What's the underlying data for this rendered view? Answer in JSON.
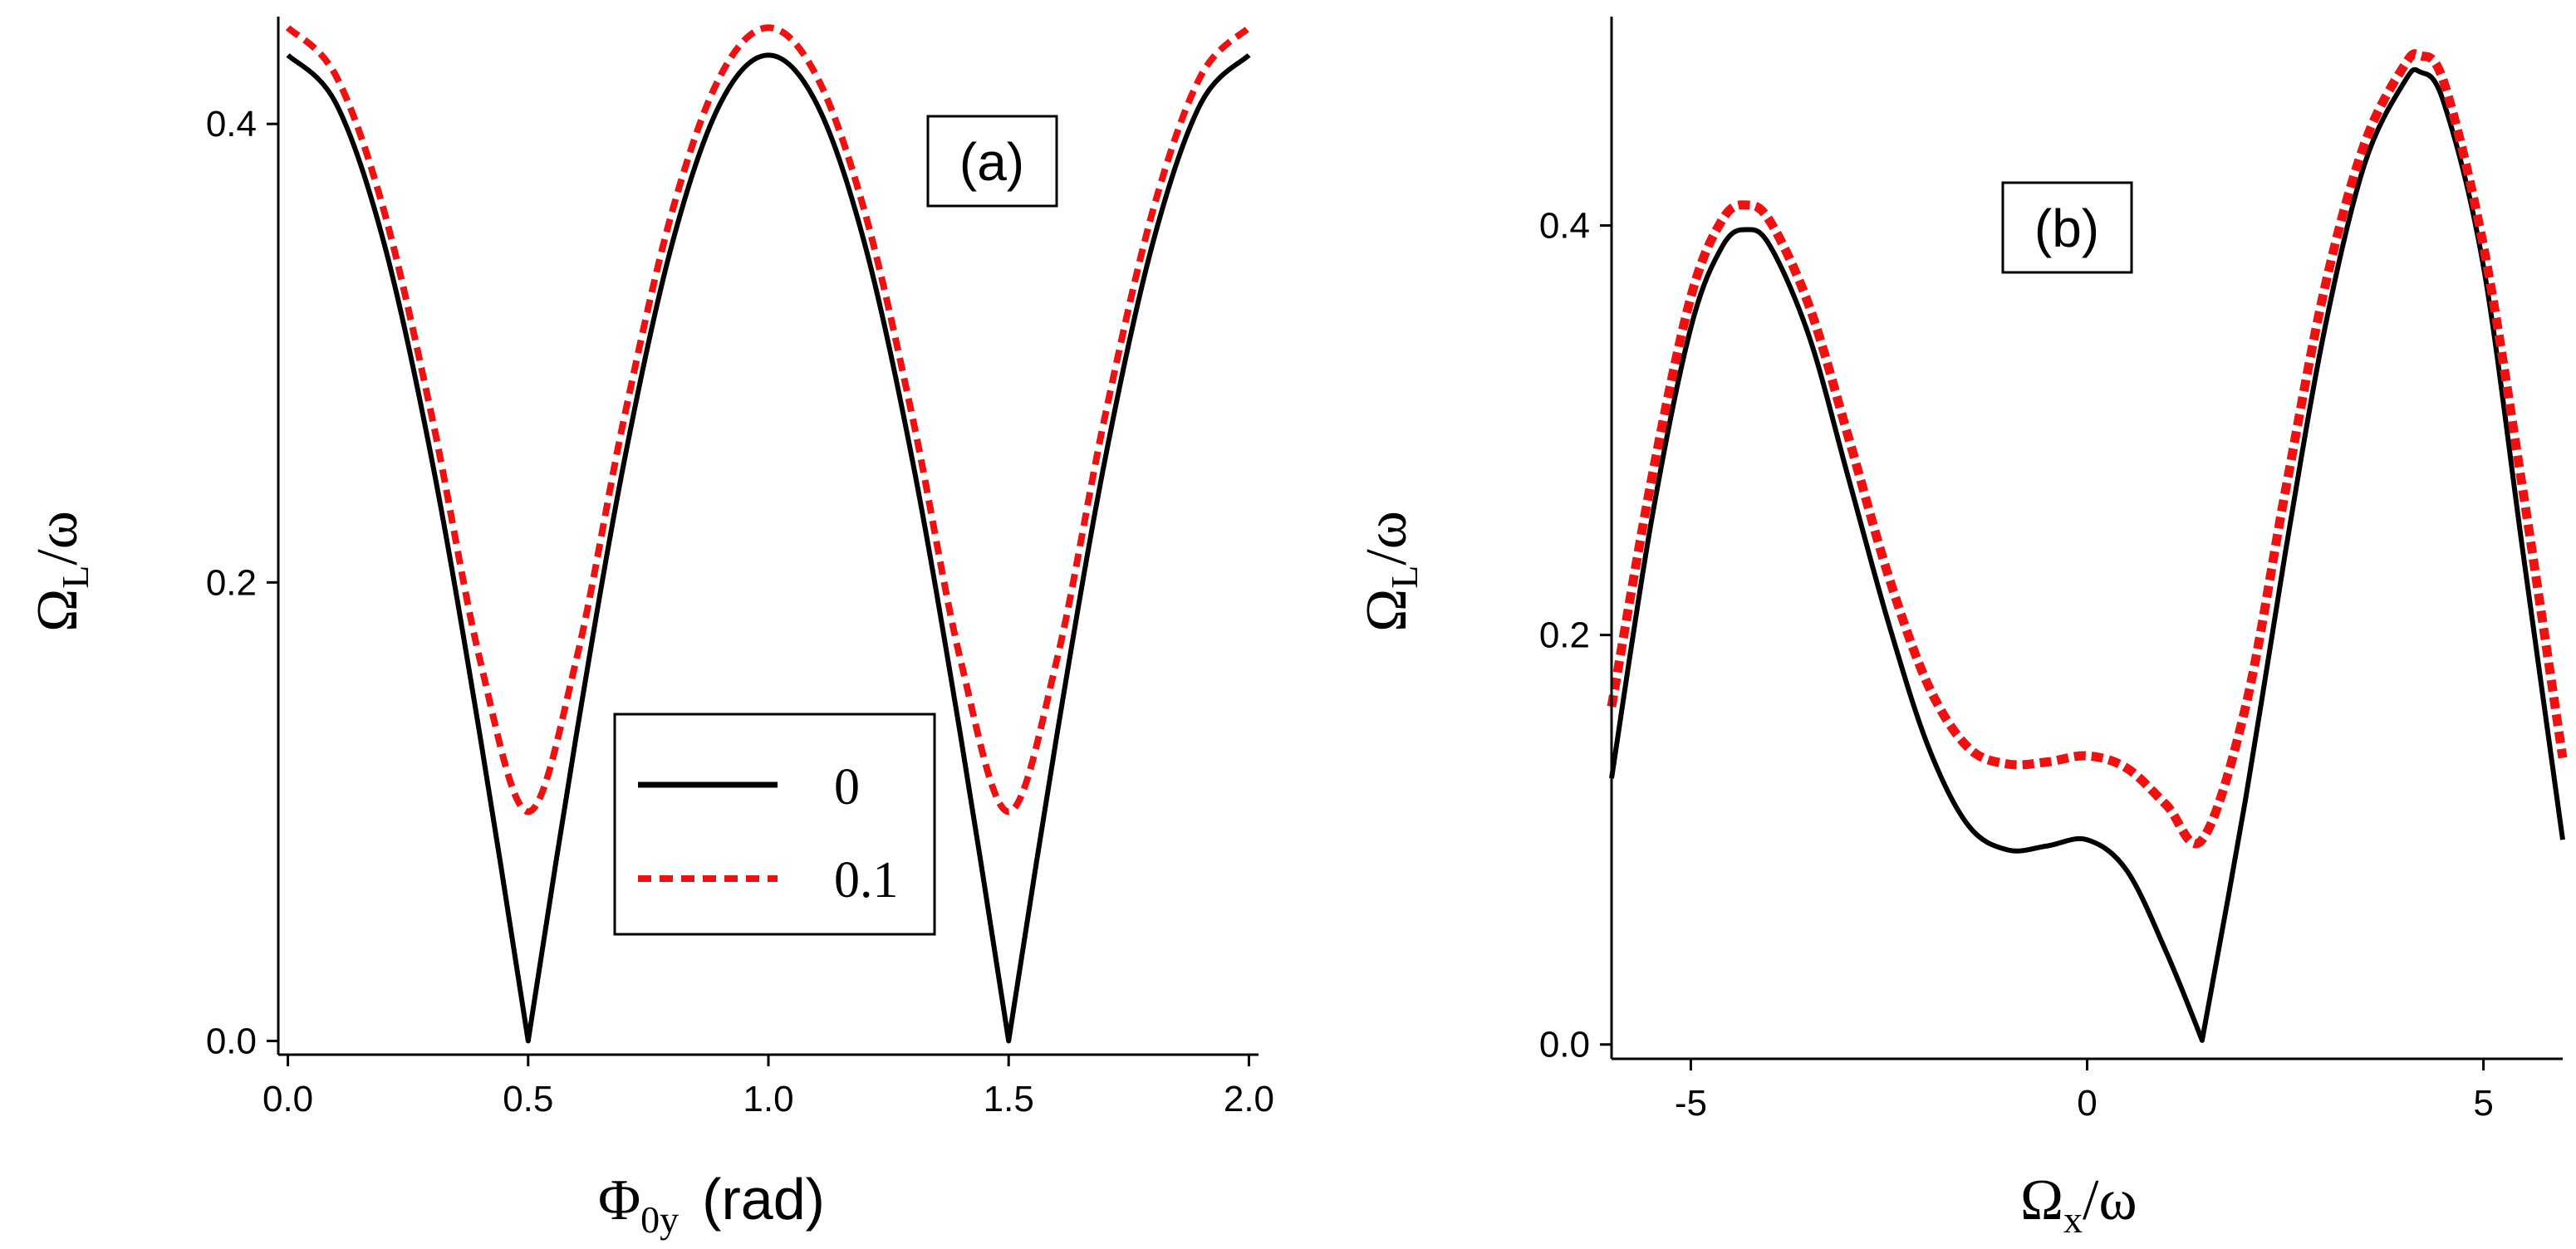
{
  "colors": {
    "solid": "#000000",
    "dashed": "#ee1111",
    "axis": "#000000"
  },
  "chart_data": [
    {
      "type": "line",
      "panel_label": "(a)",
      "xlabel": {
        "symbol": "Φ",
        "sub": "0y",
        "unit": "(rad)"
      },
      "ylabel": {
        "symbol": "Ω",
        "sub": "L",
        "rest": "/ω"
      },
      "xlim": [
        -0.02,
        2.02
      ],
      "ylim": [
        -0.006,
        0.445
      ],
      "xticks": [
        0.0,
        0.5,
        1.0,
        1.5,
        2.0
      ],
      "xtick_labels": [
        "0.0",
        "0.5",
        "1.0",
        "1.5",
        "2.0"
      ],
      "yticks": [
        0.0,
        0.2,
        0.4
      ],
      "ytick_labels": [
        "0.0",
        "0.2",
        "0.4"
      ],
      "legend": {
        "placement": "center-right",
        "entries": [
          "0",
          "0.1"
        ]
      },
      "series": [
        {
          "name": "0",
          "style": "solid",
          "x": [
            0.0,
            0.1,
            0.2,
            0.3,
            0.4,
            0.5,
            0.6,
            0.7,
            0.8,
            0.9,
            1.0,
            1.1,
            1.2,
            1.3,
            1.4,
            1.5,
            1.6,
            1.7,
            1.8,
            1.9,
            2.0
          ],
          "y": [
            0.43,
            0.409,
            0.348,
            0.253,
            0.133,
            0.0,
            0.133,
            0.253,
            0.348,
            0.409,
            0.43,
            0.409,
            0.348,
            0.253,
            0.133,
            0.0,
            0.133,
            0.253,
            0.348,
            0.409,
            0.43
          ]
        },
        {
          "name": "0.1",
          "style": "dashed",
          "x": [
            0.0,
            0.1,
            0.2,
            0.3,
            0.4,
            0.5,
            0.6,
            0.7,
            0.8,
            0.9,
            1.0,
            1.1,
            1.2,
            1.3,
            1.4,
            1.5,
            1.6,
            1.7,
            1.8,
            1.9,
            2.0
          ],
          "y": [
            0.442,
            0.421,
            0.362,
            0.272,
            0.166,
            0.1,
            0.166,
            0.272,
            0.362,
            0.421,
            0.442,
            0.421,
            0.362,
            0.272,
            0.166,
            0.1,
            0.166,
            0.272,
            0.362,
            0.421,
            0.442
          ]
        }
      ]
    },
    {
      "type": "line",
      "panel_label": "(b)",
      "xlabel": {
        "symbol": "Ω",
        "sub": "x",
        "rest": "/ω"
      },
      "ylabel": {
        "symbol": "Ω",
        "sub": "L",
        "rest": "/ω"
      },
      "xlim": [
        -6.0,
        6.0
      ],
      "ylim": [
        -0.007,
        0.5
      ],
      "xticks": [
        -5,
        0,
        5
      ],
      "xtick_labels": [
        "-5",
        "0",
        "5"
      ],
      "yticks": [
        0.0,
        0.2,
        0.4
      ],
      "ytick_labels": [
        "0.0",
        "0.2",
        "0.4"
      ],
      "series": [
        {
          "name": "0",
          "style": "solid",
          "x": [
            -6.0,
            -5.5,
            -5.0,
            -4.6,
            -4.3,
            -4.0,
            -3.5,
            -3.0,
            -2.5,
            -2.0,
            -1.5,
            -1.0,
            -0.5,
            0.0,
            0.5,
            1.0,
            1.45,
            2.0,
            2.5,
            3.0,
            3.5,
            4.0,
            4.2,
            4.5,
            5.0,
            5.5,
            6.0
          ],
          "y": [
            0.13,
            0.255,
            0.35,
            0.39,
            0.398,
            0.39,
            0.345,
            0.275,
            0.205,
            0.145,
            0.107,
            0.095,
            0.097,
            0.1,
            0.085,
            0.045,
            0.002,
            0.12,
            0.24,
            0.35,
            0.43,
            0.47,
            0.475,
            0.46,
            0.38,
            0.24,
            0.1
          ]
        },
        {
          "name": "0.1",
          "style": "dashed",
          "x": [
            -6.0,
            -5.5,
            -5.0,
            -4.6,
            -4.3,
            -4.0,
            -3.5,
            -3.0,
            -2.5,
            -2.0,
            -1.5,
            -1.0,
            -0.5,
            0.0,
            0.5,
            1.0,
            1.45,
            2.0,
            2.5,
            3.0,
            3.5,
            4.0,
            4.2,
            4.5,
            5.0,
            5.5,
            6.0
          ],
          "y": [
            0.165,
            0.275,
            0.365,
            0.403,
            0.41,
            0.402,
            0.36,
            0.295,
            0.228,
            0.175,
            0.145,
            0.137,
            0.138,
            0.141,
            0.135,
            0.117,
            0.1,
            0.165,
            0.27,
            0.37,
            0.44,
            0.478,
            0.483,
            0.47,
            0.39,
            0.27,
            0.14
          ]
        }
      ]
    }
  ]
}
